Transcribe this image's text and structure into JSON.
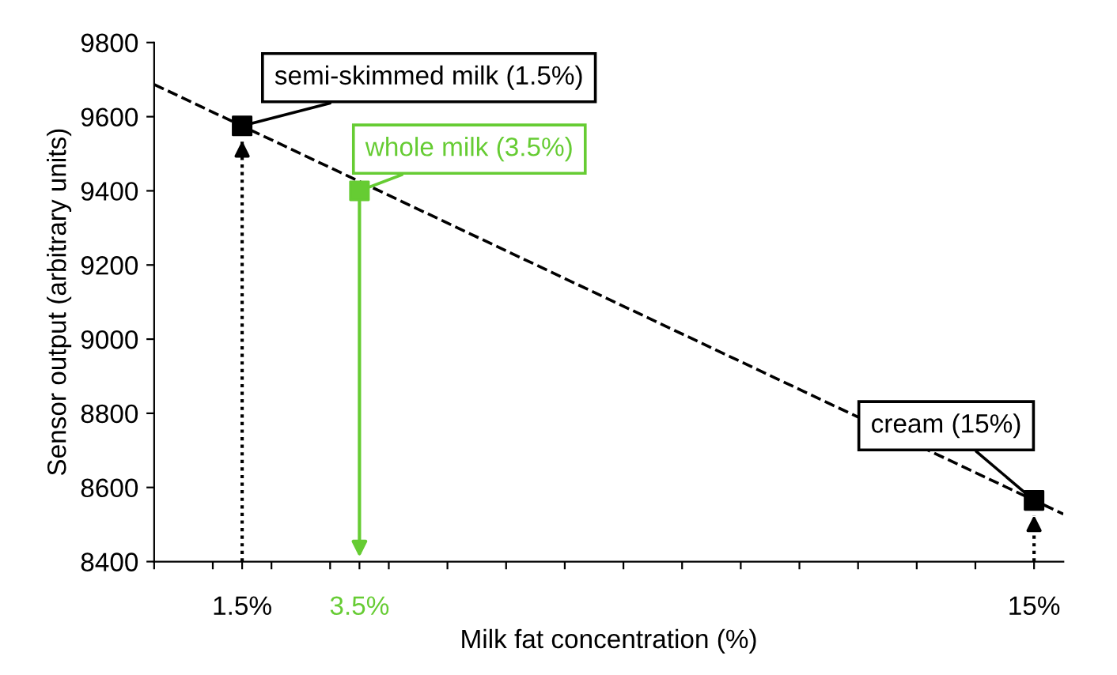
{
  "chart_data": {
    "type": "scatter",
    "xlabel": "Milk fat concentration (%)",
    "ylabel": "Sensor output (arbitrary units)",
    "xlim": [
      0,
      15.5
    ],
    "ylim": [
      8400,
      9800
    ],
    "xticks": [
      {
        "value": 0,
        "label": null
      },
      {
        "value": 1,
        "label": null
      },
      {
        "value": 1.5,
        "label": "1.5%"
      },
      {
        "value": 2,
        "label": null
      },
      {
        "value": 3,
        "label": null
      },
      {
        "value": 3.5,
        "label": "3.5%"
      },
      {
        "value": 4,
        "label": null
      },
      {
        "value": 5,
        "label": null
      },
      {
        "value": 6,
        "label": null
      },
      {
        "value": 7,
        "label": null
      },
      {
        "value": 8,
        "label": null
      },
      {
        "value": 9,
        "label": null
      },
      {
        "value": 10,
        "label": null
      },
      {
        "value": 11,
        "label": null
      },
      {
        "value": 12,
        "label": null
      },
      {
        "value": 13,
        "label": null
      },
      {
        "value": 14,
        "label": null
      },
      {
        "value": 15,
        "label": "15%"
      }
    ],
    "yticks": [
      8400,
      8600,
      8800,
      9000,
      9200,
      9400,
      9600,
      9800
    ],
    "grid": false,
    "legend": false,
    "marker": "square",
    "series": [
      {
        "type": "line",
        "x": [
          0,
          15.5
        ],
        "values": [
          9687,
          8528
        ],
        "color": "#000000",
        "line_style": "dashed",
        "marker": "none"
      },
      {
        "x": [
          1.5,
          3.5,
          15
        ],
        "values": [
          9575,
          9400,
          8565
        ],
        "colors": [
          "#000000",
          "#66cc33",
          "#000000"
        ]
      }
    ],
    "ref_lines": [
      {
        "axis": "x",
        "value": 1.5,
        "color": "#000000",
        "line_style": "dotted"
      },
      {
        "axis": "x",
        "value": 3.5,
        "color": "#66cc33",
        "line_style": "solid"
      },
      {
        "axis": "x",
        "value": 15,
        "color": "#000000",
        "line_style": "dotted"
      }
    ],
    "annotations": [
      {
        "text": "semi-skimmed milk (1.5%)",
        "x": 1.5,
        "y": 9575
      },
      {
        "text": "whole milk (3.5%)",
        "x": 3.5,
        "y": 9400
      },
      {
        "text": "cream (15%)",
        "x": 15,
        "y": 8565
      }
    ]
  }
}
